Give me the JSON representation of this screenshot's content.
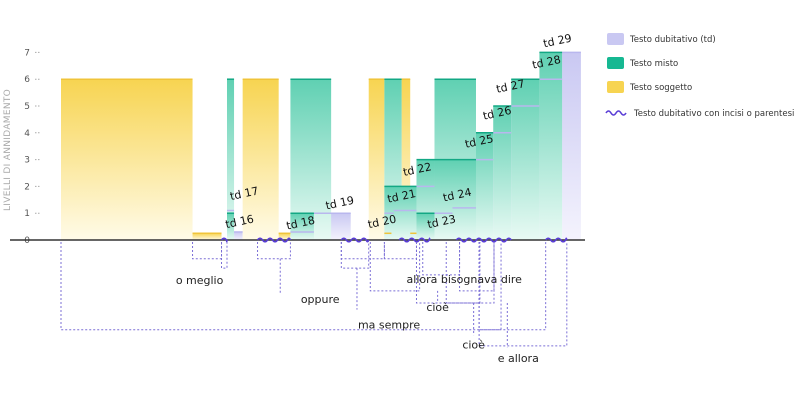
{
  "chart_data": {
    "type": "area",
    "title": "",
    "ylabel": "LIVELLI DI ANNIDAMENTO",
    "xlabel": "",
    "ylim": [
      0,
      7.3
    ],
    "yticks": [
      "0",
      "1",
      "2",
      "3",
      "4",
      "5",
      "6",
      "7"
    ],
    "grid": false,
    "legend_position": "top-right",
    "colors": {
      "dubitativo": "#c9c8f2",
      "misto": "#16b892",
      "soggetto": "#f7d451",
      "wave": "#5a3ed6",
      "axis": "#333333",
      "bracket": "#7b6fd6"
    },
    "legend": [
      {
        "key": "dubitativo",
        "label": "Testo dubitativo  (td)"
      },
      {
        "key": "misto",
        "label": "Testo misto"
      },
      {
        "key": "soggetto",
        "label": "Testo soggetto"
      },
      {
        "key": "wave",
        "label": "Testo dubitativo con incisi o parentesi"
      }
    ],
    "series": [
      {
        "type": "soggetto",
        "segments": [
          [
            0,
            16.8,
            6
          ],
          [
            16.8,
            20.5,
            0.25
          ],
          [
            23.2,
            27.8,
            6
          ],
          [
            27.8,
            29.3,
            0.25
          ],
          [
            39.3,
            41.3,
            6
          ],
          [
            41.3,
            42.2,
            0.25
          ],
          [
            43.5,
            44.6,
            6
          ],
          [
            44.6,
            45.4,
            0.25
          ]
        ]
      },
      {
        "type": "misto",
        "segments": [
          [
            21.2,
            22.1,
            6
          ],
          [
            21.2,
            22.1,
            1
          ],
          [
            29.3,
            34.5,
            6
          ],
          [
            29.3,
            32.3,
            1
          ],
          [
            41.3,
            43.5,
            6
          ],
          [
            41.3,
            45.4,
            2
          ],
          [
            45.4,
            47.7,
            3
          ],
          [
            47.7,
            53.0,
            6
          ],
          [
            45.4,
            47.7,
            1
          ],
          [
            47.7,
            53.0,
            3
          ],
          [
            53.0,
            55.2,
            4
          ],
          [
            55.2,
            57.5,
            5
          ],
          [
            57.5,
            61.1,
            6
          ],
          [
            61.1,
            64.0,
            7
          ]
        ]
      },
      {
        "type": "dubitativo",
        "segments": [
          [
            21.2,
            22.1,
            1.1
          ],
          [
            22.1,
            23.2,
            0.3
          ],
          [
            29.3,
            32.3,
            0.3
          ],
          [
            32.3,
            37.0,
            1
          ],
          [
            41.3,
            42.5,
            1
          ],
          [
            42.5,
            45.4,
            1.1
          ],
          [
            45.4,
            47.7,
            2
          ],
          [
            47.7,
            50.0,
            1
          ],
          [
            50.0,
            53.0,
            1.2
          ],
          [
            53.0,
            55.2,
            3
          ],
          [
            55.2,
            57.5,
            4
          ],
          [
            57.5,
            61.1,
            5
          ],
          [
            61.1,
            64.0,
            6
          ],
          [
            64.0,
            66.4,
            7
          ]
        ]
      }
    ],
    "td_labels": [
      {
        "text": "td 16",
        "x": 22.9,
        "y": 0.55
      },
      {
        "text": "td 17",
        "x": 23.5,
        "y": 1.6
      },
      {
        "text": "td 18",
        "x": 30.7,
        "y": 0.5
      },
      {
        "text": "td 19",
        "x": 35.7,
        "y": 1.25
      },
      {
        "text": "td 20",
        "x": 41.1,
        "y": 0.55
      },
      {
        "text": "td 21",
        "x": 43.6,
        "y": 1.5
      },
      {
        "text": "td 22",
        "x": 45.6,
        "y": 2.5
      },
      {
        "text": "td 23",
        "x": 48.7,
        "y": 0.55
      },
      {
        "text": "td 24",
        "x": 50.7,
        "y": 1.55
      },
      {
        "text": "td 25",
        "x": 53.5,
        "y": 3.55
      },
      {
        "text": "td 26",
        "x": 55.8,
        "y": 4.6
      },
      {
        "text": "td 27",
        "x": 57.5,
        "y": 5.6
      },
      {
        "text": "td 28",
        "x": 62.1,
        "y": 6.5
      },
      {
        "text": "td 29",
        "x": 63.5,
        "y": 7.3
      }
    ],
    "annotations": [
      {
        "text": "o meglio",
        "x": 17.7,
        "y": -1.5
      },
      {
        "text": "oppure",
        "x": 33.1,
        "y": -2.2
      },
      {
        "text": "allora bisognava dire",
        "x": 51.5,
        "y": -1.45
      },
      {
        "text": "cioè",
        "x": 48.1,
        "y": -2.5
      },
      {
        "text": "ma sempre",
        "x": 41.9,
        "y": -3.15
      },
      {
        "text": "cioè",
        "x": 52.7,
        "y": -3.9
      },
      {
        "text": "e allora",
        "x": 58.4,
        "y": -4.4
      }
    ]
  }
}
